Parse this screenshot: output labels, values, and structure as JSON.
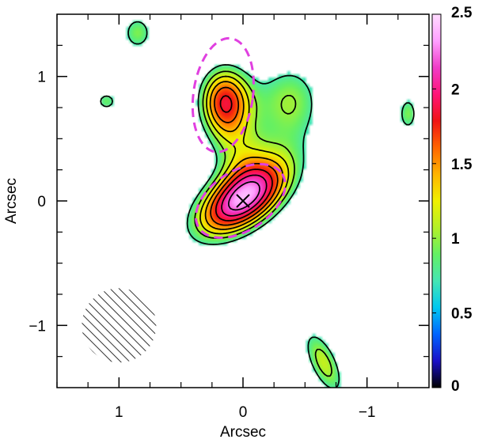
{
  "chart_data": {
    "type": "heatmap",
    "xlabel": "Arcsec",
    "ylabel": "Arcsec",
    "x_axis_reversed": true,
    "xlim": [
      1.5,
      -1.5
    ],
    "ylim": [
      -1.5,
      1.5
    ],
    "x_ticks": [
      1,
      0,
      -1
    ],
    "x_tick_labels": [
      "1",
      "0",
      "−1"
    ],
    "y_ticks": [
      1,
      0,
      -1
    ],
    "y_tick_labels": [
      "1",
      "0",
      "−1"
    ],
    "colorbar": {
      "range": [
        0,
        2.5
      ],
      "ticks": [
        0,
        0.5,
        1,
        1.5,
        2,
        2.5
      ],
      "tick_labels": [
        "0",
        "0.5",
        "1",
        "1.5",
        "2",
        "2.5"
      ],
      "colors": [
        "#000000",
        "#1a10c8",
        "#0064ff",
        "#00c8f0",
        "#46e6b4",
        "#64f064",
        "#b4f028",
        "#f0f000",
        "#ffb400",
        "#ff6400",
        "#f01414",
        "#ff1478",
        "#f03cc8",
        "#ffa0ff",
        "#ffdcff"
      ]
    },
    "contour_levels": [
      0.75,
      1.0,
      1.2,
      1.4,
      1.6,
      1.8,
      2.0,
      2.2
    ],
    "sources": [
      {
        "x": 0.0,
        "y": 0.02,
        "peak": 2.35,
        "sx": 0.34,
        "sy": 0.18,
        "angle_deg": -35
      },
      {
        "x": 0.15,
        "y": 0.8,
        "peak": 1.75,
        "sx": 0.16,
        "sy": 0.22,
        "angle_deg": 0
      },
      {
        "x": -0.38,
        "y": 0.8,
        "peak": 1.0,
        "sx": 0.22,
        "sy": 0.27,
        "angle_deg": 0
      },
      {
        "x": 0.04,
        "y": 0.42,
        "peak": 0.55,
        "sx": 0.18,
        "sy": 0.18,
        "angle_deg": 0
      },
      {
        "x": 0.85,
        "y": 1.35,
        "peak": 0.95,
        "sx": 0.11,
        "sy": 0.13,
        "angle_deg": 0
      },
      {
        "x": 1.1,
        "y": 0.8,
        "peak": 0.9,
        "sx": 0.08,
        "sy": 0.07,
        "angle_deg": 0
      },
      {
        "x": -1.33,
        "y": 0.7,
        "peak": 0.95,
        "sx": 0.07,
        "sy": 0.13,
        "angle_deg": 0
      },
      {
        "x": -0.65,
        "y": -1.3,
        "peak": 1.12,
        "sx": 0.1,
        "sy": 0.25,
        "angle_deg": -25
      }
    ],
    "ellipse_fits": [
      {
        "x": 0.02,
        "y": 0.0,
        "rx": 0.4,
        "ry": 0.24,
        "angle_deg": -33,
        "color": "#e040e0"
      },
      {
        "x": 0.16,
        "y": 0.85,
        "rx": 0.24,
        "ry": 0.46,
        "angle_deg": 8,
        "color": "#e040e0"
      }
    ],
    "marker": {
      "symbol": "x",
      "x": 0.0,
      "y": 0.0
    },
    "beam": {
      "x": 1.0,
      "y": -1.0,
      "r": 0.3,
      "hatch": true
    }
  }
}
